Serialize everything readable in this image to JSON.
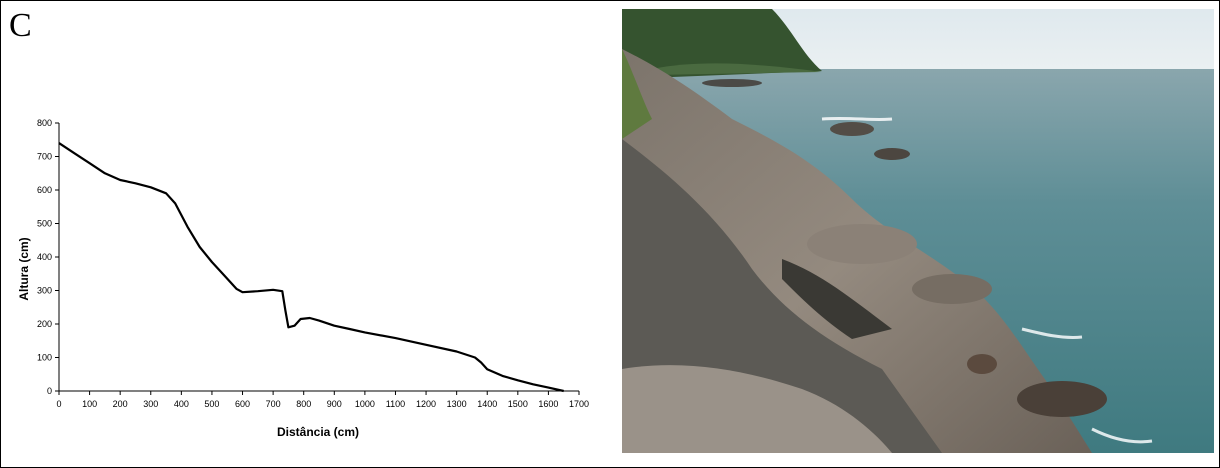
{
  "panel_label": "C",
  "chart_data": {
    "type": "line",
    "title": "",
    "xlabel": "Distância (cm)",
    "ylabel": "Altura (cm)",
    "xlim": [
      0,
      1700
    ],
    "ylim": [
      0,
      800
    ],
    "x_ticks": [
      0,
      100,
      200,
      300,
      400,
      500,
      600,
      700,
      800,
      900,
      1000,
      1100,
      1200,
      1300,
      1400,
      1500,
      1600,
      1700
    ],
    "y_ticks": [
      0,
      100,
      200,
      300,
      400,
      500,
      600,
      700,
      800
    ],
    "grid": false,
    "legend": "none",
    "series": [
      {
        "color": "#000000",
        "x": [
          0,
          50,
          100,
          150,
          200,
          250,
          300,
          350,
          380,
          420,
          460,
          500,
          540,
          580,
          600,
          650,
          700,
          730,
          740,
          750,
          770,
          790,
          820,
          850,
          900,
          950,
          1000,
          1100,
          1200,
          1300,
          1360,
          1380,
          1400,
          1450,
          1500,
          1550,
          1600,
          1650
        ],
        "y": [
          740,
          710,
          680,
          650,
          630,
          620,
          608,
          590,
          560,
          490,
          430,
          385,
          345,
          305,
          295,
          298,
          302,
          298,
          240,
          190,
          195,
          215,
          218,
          210,
          195,
          185,
          175,
          158,
          138,
          118,
          100,
          85,
          65,
          45,
          32,
          20,
          10,
          0
        ]
      }
    ]
  },
  "photo": {
    "icon": "rocky-coast-photo",
    "colors": {
      "sky": "#e3ebf0",
      "sea": "#4f838c",
      "rock": "#867d73",
      "hill": "#35532f"
    }
  }
}
